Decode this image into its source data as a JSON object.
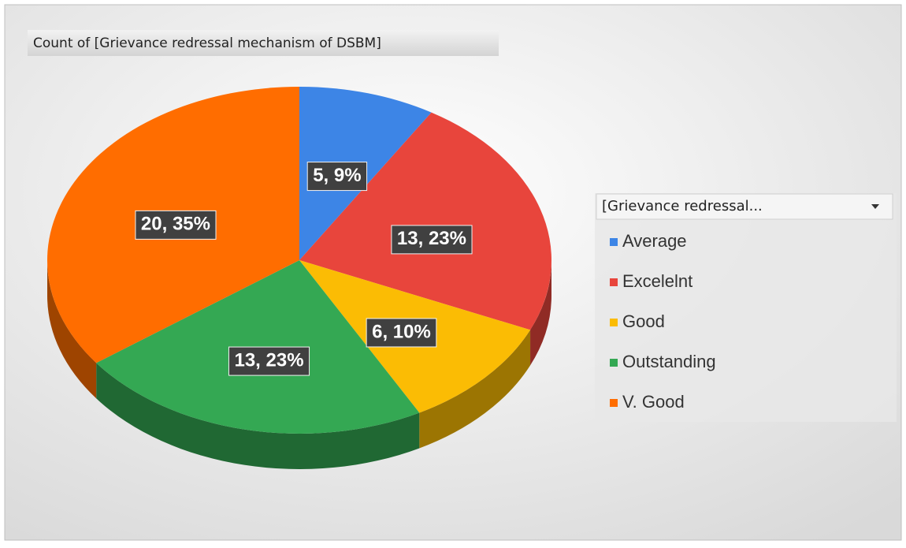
{
  "chart_data": {
    "type": "pie",
    "title": "Count of [Grievance redressal mechanism of DSBM]",
    "legend_title": "[Grievance redressal...",
    "categories": [
      "Average",
      "Excelelnt",
      "Good",
      "Outstanding",
      "V. Good"
    ],
    "values": [
      5,
      13,
      6,
      13,
      20
    ],
    "value_labels": [
      "5, 9%",
      "13, 23%",
      "6, 10%",
      "13, 23%",
      "20, 35%"
    ],
    "colors": [
      "#3d85e6",
      "#e8453c",
      "#fbbc04",
      "#34a853",
      "#ff6d00"
    ],
    "legend_position": "right"
  }
}
